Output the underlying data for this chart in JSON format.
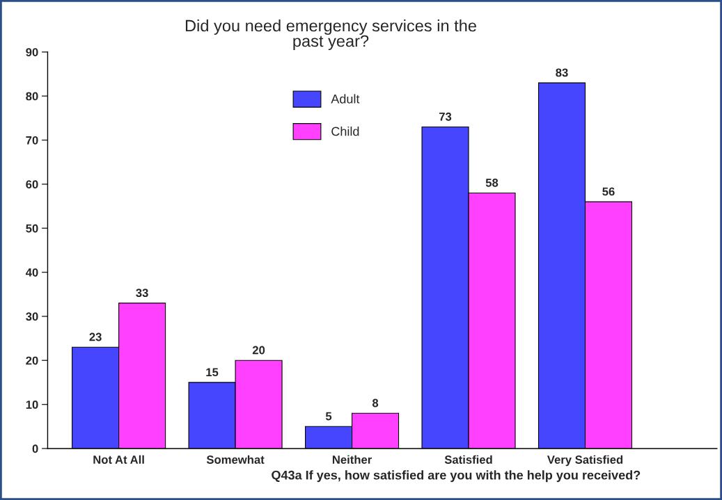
{
  "chart_data": {
    "type": "bar",
    "title": "Did you need emergency services in the\npast year?",
    "xlabel": "Q43a If yes, how satisfied are you with the help you received?",
    "categories": [
      "Not At All",
      "Somewhat",
      "Neither",
      "Satisfied",
      "Very Satisfied"
    ],
    "series": [
      {
        "name": "Adult",
        "color": "#4646ff",
        "values": [
          23,
          15,
          5,
          73,
          83
        ]
      },
      {
        "name": "Child",
        "color": "#ff40ff",
        "values": [
          33,
          20,
          8,
          58,
          56
        ]
      }
    ],
    "ylim": [
      0,
      90
    ],
    "yticks": [
      0,
      10,
      20,
      30,
      40,
      50,
      60,
      70,
      80,
      90
    ],
    "grid": false,
    "legend": "top",
    "data_labels": true
  }
}
